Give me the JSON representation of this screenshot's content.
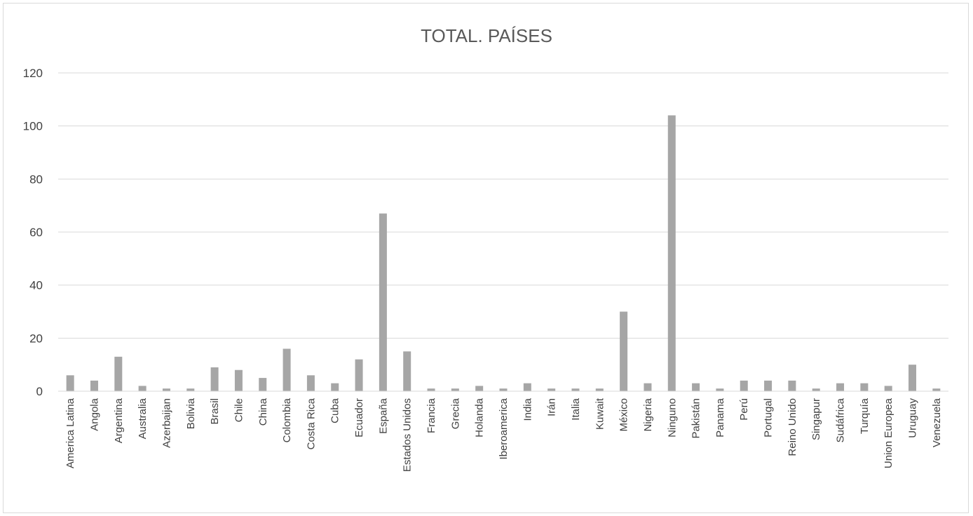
{
  "chart_data": {
    "type": "bar",
    "title": "TOTAL. PAÍSES",
    "xlabel": "",
    "ylabel": "",
    "ylim": [
      0,
      120
    ],
    "yticks": [
      0,
      20,
      40,
      60,
      80,
      100,
      120
    ],
    "grid": true,
    "bar_color": "#a6a6a6",
    "grid_color": "#d9d9d9",
    "categories": [
      "America Latina",
      "Angola",
      "Argentina",
      "Australia",
      "Azerbaijan",
      "Bolivia",
      "Brasil",
      "Chile",
      "China",
      "Colombia",
      "Costa Rica",
      "Cuba",
      "Ecuador",
      "España",
      "Estados Unidos",
      "Francia",
      "Grecia",
      "Holanda",
      "Iberoamerica",
      "India",
      "Irán",
      "Italia",
      "Kuwait",
      "México",
      "Nigeria",
      "Ninguno",
      "Pakistán",
      "Panama",
      "Perú",
      "Portugal",
      "Reino Unido",
      "Singapur",
      "Sudáfrica",
      "Turquía",
      "Union Europea",
      "Uruguay",
      "Venezuela"
    ],
    "values": [
      6,
      4,
      13,
      2,
      1,
      1,
      9,
      8,
      5,
      16,
      6,
      3,
      12,
      67,
      15,
      1,
      1,
      2,
      1,
      3,
      1,
      1,
      1,
      30,
      3,
      104,
      3,
      1,
      4,
      4,
      4,
      1,
      3,
      3,
      2,
      10,
      1
    ]
  }
}
